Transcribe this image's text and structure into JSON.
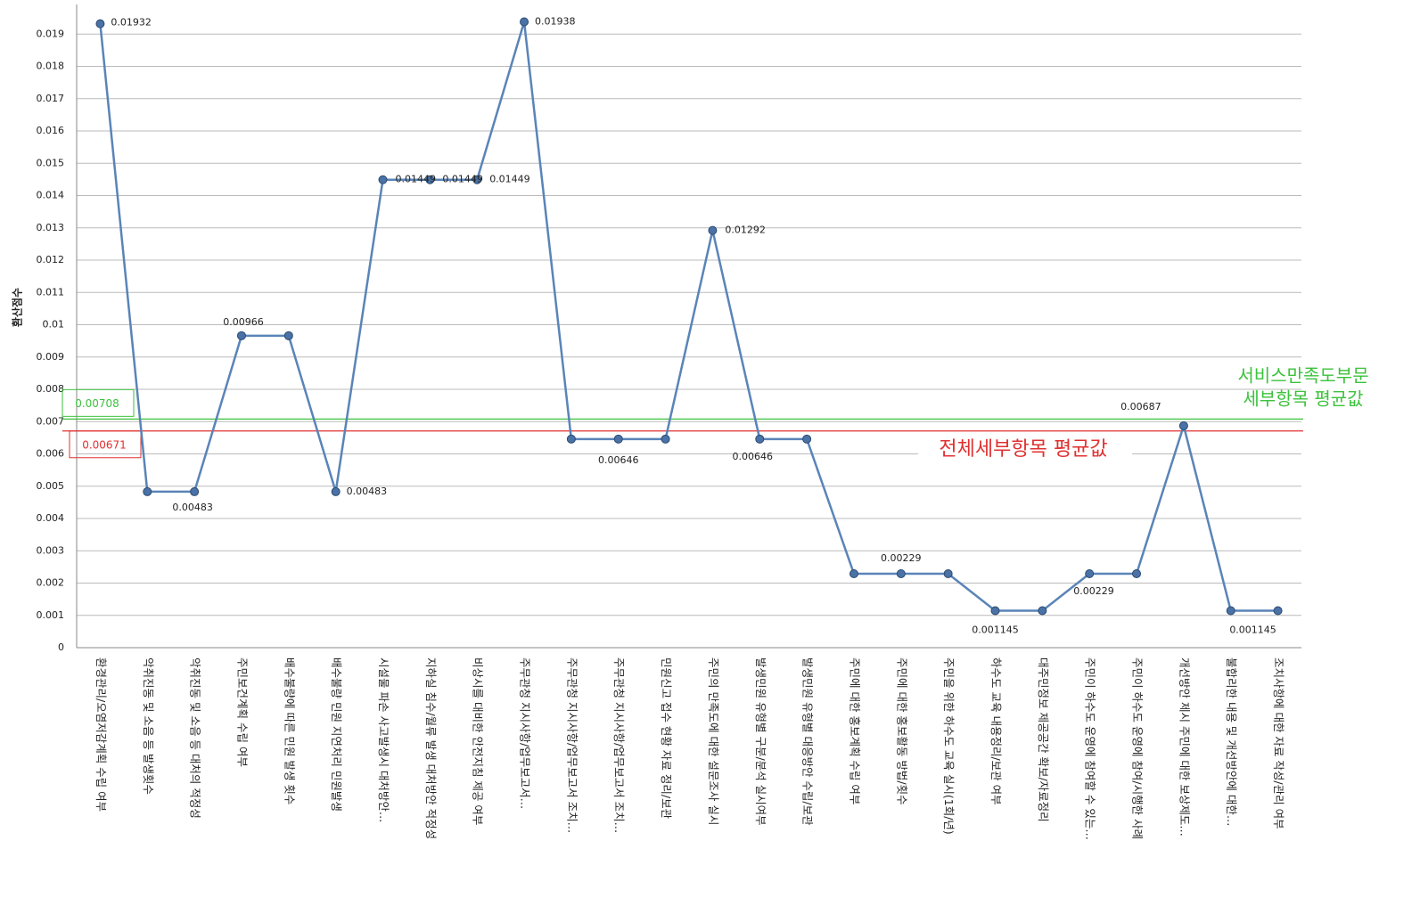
{
  "chart_data": {
    "type": "line",
    "y_label": "환산점수",
    "categories": [
      "환경관리/오염저감계획 수립 여부",
      "악취진동 및 소음 등 발생횟수",
      "악취진동 및 소음 등 대처의 적정성",
      "주민보건계획 수립 여부",
      "배수불량에 따른 민원 발생 횟수",
      "배수불량 민원 지연처리 민원발생",
      "시설물 파손 사고발생시 대처방안…",
      "지하실 침수/월류 발생 대처방안 적정성",
      "비상시를 대비한 안전지침 제공 여부",
      "주무관청 지시사항/업무보고서…",
      "주무관청 지시사항/업무보고서 조치…",
      "주무관청 지시사항/업무보고서 조치…",
      "민원신고 접수 현황 자료 정리/보관",
      "주민의 만족도에 대한 설문조사 실시",
      "발생민원 유형별 구분/분석 실시여부",
      "발생민원 유형별 대응방안 수립/보관",
      "주민에 대한 홍보계획 수립 여부",
      "주민에 대한 홍보활동 방법/횟수",
      "주민을 위한 하수도 교육 실시(1회/년)",
      "하수도 교육 내용정리/보관 여부",
      "대주민정보 제공공간 확보/자료정리",
      "주민이 하수도 운영에 참여할 수 있는…",
      "주민이 하수도 운영에 참여/시행한 사례",
      "개선방안 제시 주민에 대한 보상제도…",
      "불합리한 내용 및 개선방안에 대한…",
      "조치사항에 대한 자료 작성/관리 여부"
    ],
    "values": [
      0.01932,
      0.00483,
      0.00483,
      0.00966,
      0.00966,
      0.00483,
      0.01449,
      0.01449,
      0.01449,
      0.01938,
      0.00646,
      0.00646,
      0.00646,
      0.01292,
      0.00646,
      0.00646,
      0.00229,
      0.00229,
      0.00229,
      0.001145,
      0.001145,
      0.00229,
      0.00229,
      0.00687,
      0.001145,
      0.001145
    ],
    "value_labels": [
      "0.01932",
      null,
      "0.00483",
      "0.00966",
      null,
      "0.00483",
      "0.01449",
      "0.01449",
      "0.01449",
      "0.01938",
      null,
      "0.00646",
      null,
      "0.01292",
      "0.00646",
      null,
      null,
      "0.00229",
      null,
      "0.001145",
      null,
      null,
      "0.00229",
      "0.00687",
      null,
      "0.001145"
    ],
    "color": "#5a84b8",
    "marker_color": "#4a72a6",
    "ylim": [
      0,
      0.02
    ],
    "yticks": [
      0,
      0.001,
      0.002,
      0.003,
      0.004,
      0.005,
      0.006,
      0.007,
      0.008,
      0.009,
      0.01,
      0.011,
      0.012,
      0.013,
      0.014,
      0.015,
      0.016,
      0.017,
      0.018,
      0.019
    ],
    "grid": true,
    "reference_lines": [
      {
        "value": 0.00708,
        "color": "#3cc23c",
        "annotation": [
          "서비스만족도부문",
          "세부항목 평균값"
        ]
      },
      {
        "value": 0.00671,
        "color": "#e03030",
        "annotation": [
          "전체세부항목 평균값"
        ]
      }
    ]
  }
}
